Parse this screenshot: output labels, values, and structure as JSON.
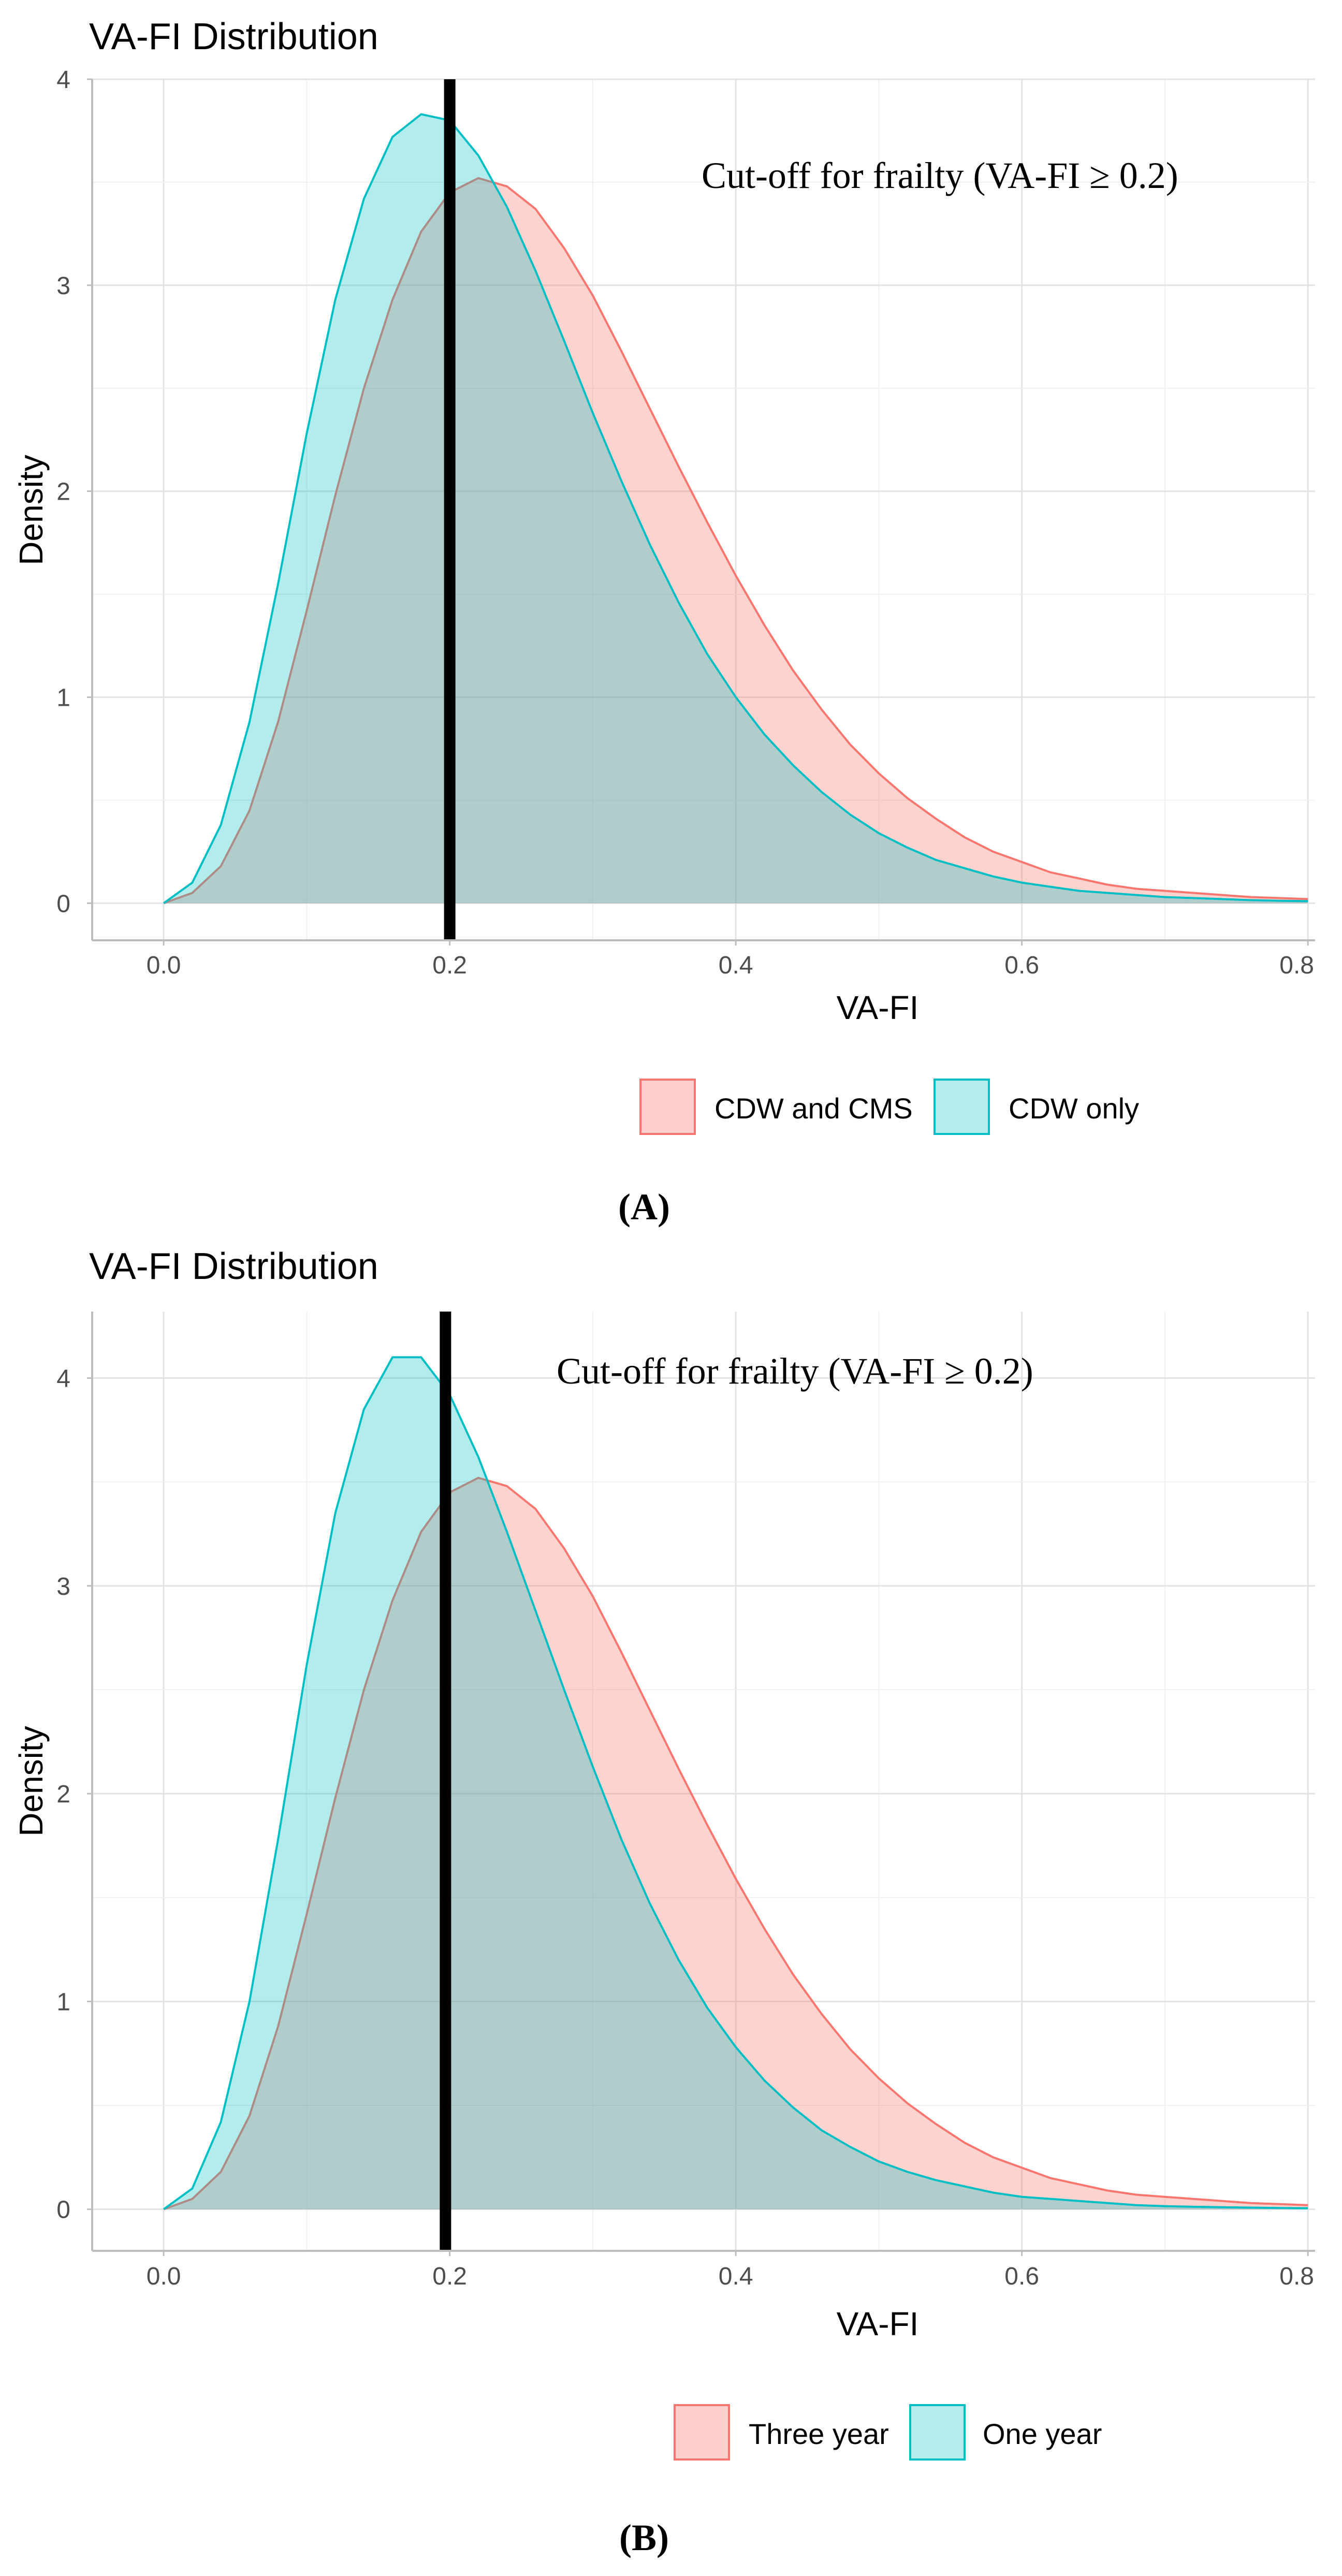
{
  "chart_data": [
    {
      "type": "area",
      "panel_label": "(A)",
      "title": "VA-FI Distribution",
      "xlabel": "VA-FI",
      "ylabel": "Density",
      "xlim": [
        -0.05,
        0.805
      ],
      "ylim": [
        -0.18,
        4.0
      ],
      "x_ticks": [
        "0.0",
        "0.2",
        "0.4",
        "0.6",
        "0.8"
      ],
      "x_tick_values": [
        0.0,
        0.2,
        0.4,
        0.6,
        0.8
      ],
      "y_ticks": [
        "0",
        "1",
        "2",
        "3",
        "4"
      ],
      "y_tick_values": [
        0,
        1,
        2,
        3,
        4
      ],
      "cutoff_x": 0.2,
      "annotation": "Cut-off for frailty (VA-FI ≥ 0.2)",
      "legend": [
        "CDW and CMS",
        "CDW only"
      ],
      "series": [
        {
          "name": "CDW and CMS",
          "color": "#F8766D",
          "x": [
            0.0,
            0.02,
            0.04,
            0.06,
            0.08,
            0.1,
            0.12,
            0.14,
            0.16,
            0.18,
            0.2,
            0.22,
            0.24,
            0.26,
            0.28,
            0.3,
            0.32,
            0.34,
            0.36,
            0.38,
            0.4,
            0.42,
            0.44,
            0.46,
            0.48,
            0.5,
            0.52,
            0.54,
            0.56,
            0.58,
            0.6,
            0.62,
            0.64,
            0.66,
            0.68,
            0.7,
            0.72,
            0.74,
            0.76,
            0.78,
            0.8
          ],
          "y": [
            0.0,
            0.05,
            0.18,
            0.45,
            0.88,
            1.42,
            1.98,
            2.5,
            2.93,
            3.26,
            3.45,
            3.52,
            3.48,
            3.37,
            3.18,
            2.95,
            2.68,
            2.4,
            2.12,
            1.85,
            1.59,
            1.35,
            1.13,
            0.94,
            0.77,
            0.63,
            0.51,
            0.41,
            0.32,
            0.25,
            0.2,
            0.15,
            0.12,
            0.09,
            0.07,
            0.06,
            0.05,
            0.04,
            0.03,
            0.025,
            0.02
          ]
        },
        {
          "name": "CDW only",
          "color": "#00BFC4",
          "x": [
            0.0,
            0.02,
            0.04,
            0.06,
            0.08,
            0.1,
            0.12,
            0.14,
            0.16,
            0.18,
            0.2,
            0.22,
            0.24,
            0.26,
            0.28,
            0.3,
            0.32,
            0.34,
            0.36,
            0.38,
            0.4,
            0.42,
            0.44,
            0.46,
            0.48,
            0.5,
            0.52,
            0.54,
            0.56,
            0.58,
            0.6,
            0.62,
            0.64,
            0.66,
            0.68,
            0.7,
            0.72,
            0.74,
            0.76,
            0.78,
            0.8
          ],
          "y": [
            0.0,
            0.1,
            0.38,
            0.88,
            1.55,
            2.28,
            2.93,
            3.42,
            3.72,
            3.83,
            3.8,
            3.63,
            3.38,
            3.07,
            2.73,
            2.38,
            2.05,
            1.74,
            1.46,
            1.21,
            1.0,
            0.82,
            0.67,
            0.54,
            0.43,
            0.34,
            0.27,
            0.21,
            0.17,
            0.13,
            0.1,
            0.08,
            0.06,
            0.05,
            0.04,
            0.03,
            0.025,
            0.02,
            0.015,
            0.012,
            0.01
          ]
        }
      ]
    },
    {
      "type": "area",
      "panel_label": "(B)",
      "title": "VA-FI Distribution",
      "xlabel": "VA-FI",
      "ylabel": "Density",
      "xlim": [
        -0.05,
        0.805
      ],
      "ylim": [
        -0.2,
        4.32
      ],
      "x_ticks": [
        "0.0",
        "0.2",
        "0.4",
        "0.6",
        "0.8"
      ],
      "x_tick_values": [
        0.0,
        0.2,
        0.4,
        0.6,
        0.8
      ],
      "y_ticks": [
        "0",
        "1",
        "2",
        "3",
        "4"
      ],
      "y_tick_values": [
        0,
        1,
        2,
        3,
        4
      ],
      "cutoff_x": 0.197,
      "annotation": "Cut-off for frailty (VA-FI ≥ 0.2)",
      "legend": [
        "Three year",
        "One year"
      ],
      "series": [
        {
          "name": "Three year",
          "color": "#F8766D",
          "x": [
            0.0,
            0.02,
            0.04,
            0.06,
            0.08,
            0.1,
            0.12,
            0.14,
            0.16,
            0.18,
            0.2,
            0.22,
            0.24,
            0.26,
            0.28,
            0.3,
            0.32,
            0.34,
            0.36,
            0.38,
            0.4,
            0.42,
            0.44,
            0.46,
            0.48,
            0.5,
            0.52,
            0.54,
            0.56,
            0.58,
            0.6,
            0.62,
            0.64,
            0.66,
            0.68,
            0.7,
            0.72,
            0.74,
            0.76,
            0.78,
            0.8
          ],
          "y": [
            0.0,
            0.05,
            0.18,
            0.45,
            0.88,
            1.42,
            1.98,
            2.5,
            2.93,
            3.26,
            3.45,
            3.52,
            3.48,
            3.37,
            3.18,
            2.95,
            2.68,
            2.4,
            2.12,
            1.85,
            1.59,
            1.35,
            1.13,
            0.94,
            0.77,
            0.63,
            0.51,
            0.41,
            0.32,
            0.25,
            0.2,
            0.15,
            0.12,
            0.09,
            0.07,
            0.06,
            0.05,
            0.04,
            0.03,
            0.025,
            0.02
          ]
        },
        {
          "name": "One year",
          "color": "#00BFC4",
          "x": [
            0.0,
            0.02,
            0.04,
            0.06,
            0.08,
            0.1,
            0.12,
            0.14,
            0.16,
            0.18,
            0.2,
            0.22,
            0.24,
            0.26,
            0.28,
            0.3,
            0.32,
            0.34,
            0.36,
            0.38,
            0.4,
            0.42,
            0.44,
            0.46,
            0.48,
            0.5,
            0.52,
            0.54,
            0.56,
            0.58,
            0.6,
            0.62,
            0.64,
            0.66,
            0.68,
            0.7,
            0.72,
            0.74,
            0.76,
            0.78,
            0.8
          ],
          "y": [
            0.0,
            0.1,
            0.42,
            1.0,
            1.78,
            2.62,
            3.35,
            3.85,
            4.1,
            4.1,
            3.92,
            3.62,
            3.26,
            2.88,
            2.5,
            2.13,
            1.78,
            1.47,
            1.2,
            0.97,
            0.78,
            0.62,
            0.49,
            0.38,
            0.3,
            0.23,
            0.18,
            0.14,
            0.11,
            0.08,
            0.06,
            0.05,
            0.04,
            0.03,
            0.02,
            0.015,
            0.012,
            0.01,
            0.008,
            0.006,
            0.005
          ]
        }
      ]
    }
  ]
}
